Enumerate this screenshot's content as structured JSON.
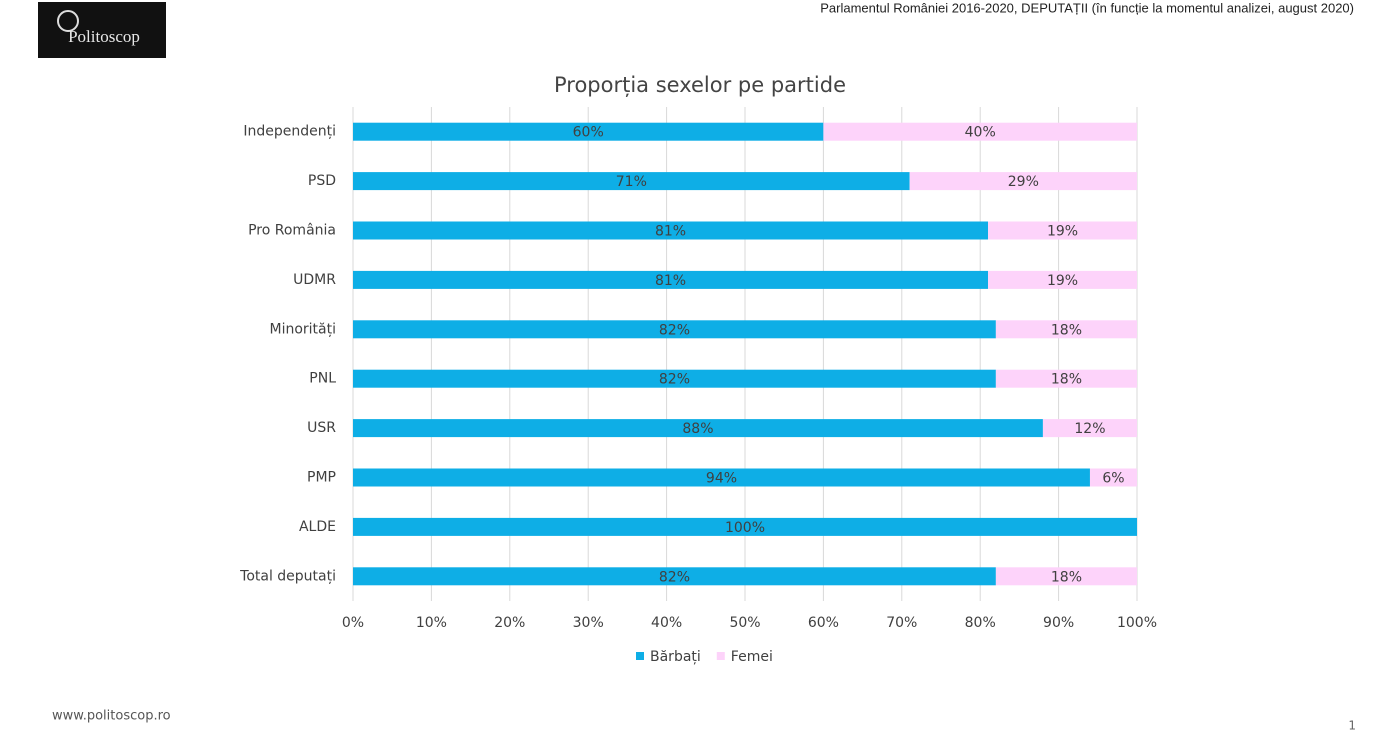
{
  "header": "Parlamentul României 2016-2020, DEPUTAȚII (în funcție la momentul analizei, august 2020)",
  "logo": "Politoscop",
  "footer": "www.politoscop.ro",
  "page_number": 1,
  "chart_data": {
    "type": "stacked-bar-horizontal",
    "title": "Proporția sexelor pe partide",
    "categories": [
      "Independenți",
      "PSD",
      "Pro România",
      "UDMR",
      "Minorități",
      "PNL",
      "USR",
      "PMP",
      "ALDE",
      "Total deputați"
    ],
    "series": [
      {
        "name": "Bărbați",
        "color": "#0eaee6",
        "values": [
          60,
          71,
          81,
          81,
          82,
          82,
          88,
          94,
          100,
          82
        ],
        "value_labels": [
          "60%",
          "71%",
          "81%",
          "81%",
          "82%",
          "82%",
          "88%",
          "94%",
          "100%",
          "82%"
        ]
      },
      {
        "name": "Femei",
        "color": "#fdd3fa",
        "values": [
          40,
          29,
          19,
          19,
          18,
          18,
          12,
          6,
          0,
          18
        ],
        "value_labels": [
          "40%",
          "29%",
          "19%",
          "19%",
          "18%",
          "18%",
          "12%",
          "6%",
          null,
          "18%"
        ]
      }
    ],
    "xlim": [
      0,
      100
    ],
    "xticks": [
      {
        "value": 0,
        "label": "0%"
      },
      {
        "value": 10,
        "label": "10%"
      },
      {
        "value": 20,
        "label": "20%"
      },
      {
        "value": 30,
        "label": "30%"
      },
      {
        "value": 40,
        "label": "40%"
      },
      {
        "value": 50,
        "label": "50%"
      },
      {
        "value": 60,
        "label": "60%"
      },
      {
        "value": 70,
        "label": "70%"
      },
      {
        "value": 80,
        "label": "80%"
      },
      {
        "value": 90,
        "label": "90%"
      },
      {
        "value": 100,
        "label": "100%"
      }
    ],
    "grid": true,
    "legend": "bottom"
  }
}
